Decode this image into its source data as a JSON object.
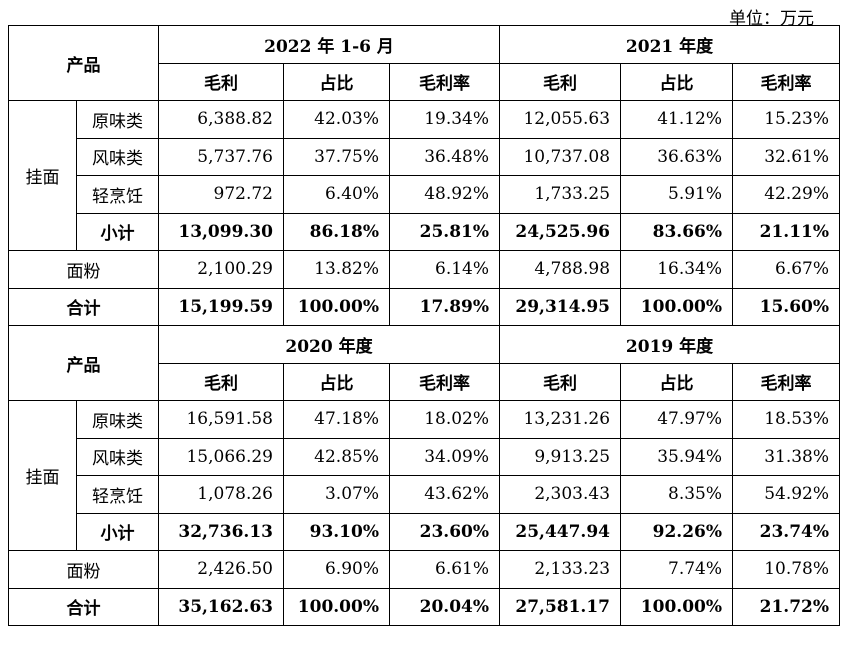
{
  "unit_label": "单位：万元",
  "product_label": "产品",
  "metric_headers": [
    "毛利",
    "占比",
    "毛利率"
  ],
  "group_label": "挂面",
  "labels": {
    "yuanwei": "原味类",
    "fengwei": "风味类",
    "qingpengren": "轻烹饪",
    "subtotal": "小计",
    "flour": "面粉",
    "total": "合计"
  },
  "blocks": [
    {
      "periods": [
        "2022 年 1-6 月",
        "2021 年度"
      ],
      "rows": {
        "yuanwei": [
          "6,388.82",
          "42.03%",
          "19.34%",
          "12,055.63",
          "41.12%",
          "15.23%"
        ],
        "fengwei": [
          "5,737.76",
          "37.75%",
          "36.48%",
          "10,737.08",
          "36.63%",
          "32.61%"
        ],
        "qingpengren": [
          "972.72",
          "6.40%",
          "48.92%",
          "1,733.25",
          "5.91%",
          "42.29%"
        ],
        "subtotal": [
          "13,099.30",
          "86.18%",
          "25.81%",
          "24,525.96",
          "83.66%",
          "21.11%"
        ],
        "flour": [
          "2,100.29",
          "13.82%",
          "6.14%",
          "4,788.98",
          "16.34%",
          "6.67%"
        ],
        "total": [
          "15,199.59",
          "100.00%",
          "17.89%",
          "29,314.95",
          "100.00%",
          "15.60%"
        ]
      }
    },
    {
      "periods": [
        "2020 年度",
        "2019 年度"
      ],
      "rows": {
        "yuanwei": [
          "16,591.58",
          "47.18%",
          "18.02%",
          "13,231.26",
          "47.97%",
          "18.53%"
        ],
        "fengwei": [
          "15,066.29",
          "42.85%",
          "34.09%",
          "9,913.25",
          "35.94%",
          "31.38%"
        ],
        "qingpengren": [
          "1,078.26",
          "3.07%",
          "43.62%",
          "2,303.43",
          "8.35%",
          "54.92%"
        ],
        "subtotal": [
          "32,736.13",
          "93.10%",
          "23.60%",
          "25,447.94",
          "92.26%",
          "23.74%"
        ],
        "flour": [
          "2,426.50",
          "6.90%",
          "6.61%",
          "2,133.23",
          "7.74%",
          "10.78%"
        ],
        "total": [
          "35,162.63",
          "100.00%",
          "20.04%",
          "27,581.17",
          "100.00%",
          "21.72%"
        ]
      }
    }
  ]
}
